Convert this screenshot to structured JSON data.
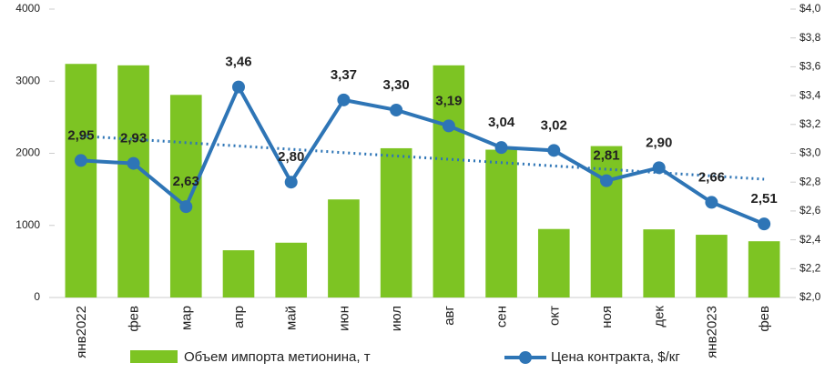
{
  "chart_data": {
    "type": "bar-line",
    "categories": [
      "янв2022",
      "фев",
      "мар",
      "апр",
      "май",
      "июн",
      "июл",
      "авг",
      "сен",
      "окт",
      "ноя",
      "дек",
      "янв2023",
      "фев"
    ],
    "series": [
      {
        "name": "Объем импорта метионина, т",
        "type": "bar",
        "color": "#7dc423",
        "values": [
          3240,
          3220,
          2810,
          655,
          760,
          1360,
          2070,
          3220,
          2050,
          950,
          2100,
          945,
          870,
          780
        ]
      },
      {
        "name": "Цена контракта, $/кг",
        "type": "line",
        "axis": "y2",
        "color": "#2e75b6",
        "values": [
          2.95,
          2.93,
          2.63,
          3.46,
          2.8,
          3.37,
          3.3,
          3.19,
          3.04,
          3.02,
          2.81,
          2.9,
          2.66,
          2.51
        ],
        "value_labels": [
          "2,95",
          "2,93",
          "2,63",
          "3,46",
          "2,80",
          "3,37",
          "3,30",
          "3,19",
          "3,04",
          "3,02",
          "2,81",
          "2,90",
          "2,66",
          "2,51"
        ]
      }
    ],
    "trend": {
      "color": "#2e75b6",
      "values": [
        3.12,
        2.82
      ]
    },
    "ylim": [
      0,
      4000
    ],
    "yticks": [
      0,
      1000,
      2000,
      3000,
      4000
    ],
    "y2lim": [
      2.0,
      4.0
    ],
    "y2ticks": [
      {
        "value": 2.0,
        "label": "$2,0"
      },
      {
        "value": 2.2,
        "label": "$2,2"
      },
      {
        "value": 2.4,
        "label": "$2,4"
      },
      {
        "value": 2.6,
        "label": "$2,6"
      },
      {
        "value": 2.8,
        "label": "$2,8"
      },
      {
        "value": 3.0,
        "label": "$3,0"
      },
      {
        "value": 3.2,
        "label": "$3,2"
      },
      {
        "value": 3.4,
        "label": "$3,4"
      },
      {
        "value": 3.6,
        "label": "$3,6"
      },
      {
        "value": 3.8,
        "label": "$3,8"
      },
      {
        "value": 4.0,
        "label": "$4,0"
      }
    ]
  }
}
